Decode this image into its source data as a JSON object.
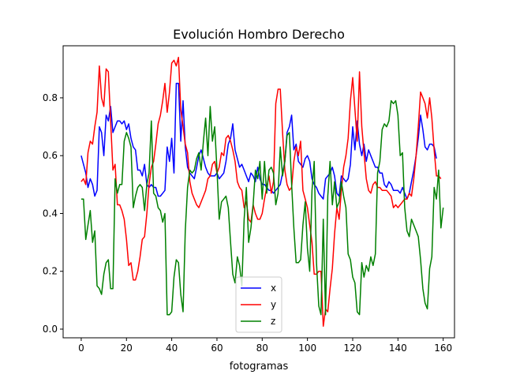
{
  "chart_data": {
    "type": "line",
    "title": "Evolución Hombro Derecho",
    "xlabel": "fotogramas",
    "ylabel": "",
    "xlim": [
      -8,
      165
    ],
    "ylim": [
      -0.03,
      0.98
    ],
    "xticks": [
      0,
      20,
      40,
      60,
      80,
      100,
      120,
      140,
      160
    ],
    "yticks": [
      0.0,
      0.2,
      0.4,
      0.6,
      0.8
    ],
    "xtick_labels": [
      "0",
      "20",
      "40",
      "60",
      "80",
      "100",
      "120",
      "140",
      "160"
    ],
    "ytick_labels": [
      "0.0",
      "0.2",
      "0.4",
      "0.6",
      "0.8"
    ],
    "grid": false,
    "legend": "bottom-center",
    "series": [
      {
        "name": "x",
        "color": "#0000ff",
        "values": [
          0.6,
          0.57,
          0.54,
          0.49,
          0.52,
          0.5,
          0.46,
          0.48,
          0.7,
          0.68,
          0.6,
          0.74,
          0.72,
          0.77,
          0.68,
          0.7,
          0.72,
          0.72,
          0.71,
          0.72,
          0.69,
          0.71,
          0.66,
          0.63,
          0.62,
          0.55,
          0.55,
          0.53,
          0.57,
          0.5,
          0.49,
          0.5,
          0.49,
          0.49,
          0.46,
          0.46,
          0.47,
          0.48,
          0.63,
          0.58,
          0.66,
          0.54,
          0.85,
          0.85,
          0.65,
          0.79,
          0.63,
          0.56,
          0.54,
          0.53,
          0.52,
          0.56,
          0.6,
          0.62,
          0.59,
          0.56,
          0.54,
          0.53,
          0.53,
          0.53,
          0.54,
          0.52,
          0.53,
          0.54,
          0.58,
          0.64,
          0.66,
          0.71,
          0.62,
          0.59,
          0.56,
          0.57,
          0.55,
          0.53,
          0.51,
          0.54,
          0.53,
          0.51,
          0.56,
          0.52,
          0.5,
          0.5,
          0.49,
          0.48,
          0.48,
          0.47,
          0.48,
          0.49,
          0.5,
          0.54,
          0.58,
          0.68,
          0.7,
          0.74,
          0.62,
          0.64,
          0.58,
          0.57,
          0.56,
          0.59,
          0.6,
          0.58,
          0.52,
          0.5,
          0.49,
          0.47,
          0.46,
          0.45,
          0.52,
          0.53,
          0.54,
          0.56,
          0.53,
          0.47,
          0.46,
          0.53,
          0.52,
          0.51,
          0.52,
          0.57,
          0.7,
          0.62,
          0.72,
          0.64,
          0.6,
          0.64,
          0.58,
          0.62,
          0.6,
          0.58,
          0.56,
          0.56,
          0.54,
          0.54,
          0.5,
          0.49,
          0.51,
          0.5,
          0.48,
          0.48,
          0.48,
          0.47,
          0.49,
          0.47,
          0.45,
          0.47,
          0.51,
          0.55,
          0.6,
          0.66,
          0.74,
          0.69,
          0.63,
          0.62,
          0.64,
          0.64,
          0.63,
          0.59
        ]
      },
      {
        "name": "y",
        "color": "#ff0000",
        "values": [
          0.51,
          0.52,
          0.5,
          0.61,
          0.65,
          0.64,
          0.7,
          0.75,
          0.91,
          0.8,
          0.77,
          0.9,
          0.89,
          0.72,
          0.55,
          0.57,
          0.43,
          0.43,
          0.41,
          0.38,
          0.31,
          0.22,
          0.23,
          0.17,
          0.17,
          0.2,
          0.25,
          0.31,
          0.32,
          0.4,
          0.5,
          0.56,
          0.58,
          0.64,
          0.71,
          0.74,
          0.79,
          0.85,
          0.75,
          0.82,
          0.92,
          0.93,
          0.91,
          0.94,
          0.76,
          0.7,
          0.64,
          0.61,
          0.51,
          0.47,
          0.45,
          0.43,
          0.42,
          0.44,
          0.46,
          0.48,
          0.52,
          0.53,
          0.57,
          0.58,
          0.54,
          0.56,
          0.61,
          0.6,
          0.66,
          0.67,
          0.65,
          0.62,
          0.58,
          0.51,
          0.49,
          0.48,
          0.42,
          0.44,
          0.38,
          0.37,
          0.43,
          0.4,
          0.38,
          0.38,
          0.4,
          0.45,
          0.49,
          0.53,
          0.47,
          0.51,
          0.78,
          0.83,
          0.83,
          0.68,
          0.55,
          0.5,
          0.48,
          0.49,
          0.58,
          0.63,
          0.6,
          0.65,
          0.48,
          0.45,
          0.42,
          0.36,
          0.3,
          0.19,
          0.19,
          0.2,
          0.2,
          0.01,
          0.07,
          0.06,
          0.14,
          0.21,
          0.33,
          0.42,
          0.38,
          0.48,
          0.56,
          0.6,
          0.66,
          0.79,
          0.87,
          0.76,
          0.65,
          0.89,
          0.7,
          0.61,
          0.52,
          0.48,
          0.47,
          0.5,
          0.51,
          0.49,
          0.49,
          0.48,
          0.48,
          0.48,
          0.47,
          0.46,
          0.42,
          0.43,
          0.42,
          0.43,
          0.44,
          0.45,
          0.45,
          0.47,
          0.46,
          0.52,
          0.6,
          0.7,
          0.82,
          0.8,
          0.78,
          0.73,
          0.8,
          0.73,
          0.62,
          0.53,
          0.53,
          0.52
        ]
      },
      {
        "name": "z",
        "color": "#008000",
        "values": [
          0.45,
          0.45,
          0.31,
          0.36,
          0.41,
          0.3,
          0.34,
          0.15,
          0.14,
          0.12,
          0.19,
          0.23,
          0.24,
          0.14,
          0.14,
          0.52,
          0.47,
          0.5,
          0.5,
          0.65,
          0.68,
          0.66,
          0.63,
          0.42,
          0.46,
          0.49,
          0.5,
          0.49,
          0.41,
          0.5,
          0.54,
          0.72,
          0.47,
          0.46,
          0.42,
          0.41,
          0.37,
          0.4,
          0.05,
          0.05,
          0.06,
          0.18,
          0.24,
          0.23,
          0.12,
          0.06,
          0.34,
          0.49,
          0.55,
          0.54,
          0.55,
          0.59,
          0.61,
          0.55,
          0.65,
          0.73,
          0.6,
          0.77,
          0.65,
          0.7,
          0.55,
          0.38,
          0.44,
          0.45,
          0.46,
          0.42,
          0.3,
          0.19,
          0.16,
          0.25,
          0.22,
          0.15,
          0.38,
          0.49,
          0.3,
          0.35,
          0.43,
          0.55,
          0.52,
          0.58,
          0.45,
          0.58,
          0.47,
          0.55,
          0.56,
          0.54,
          0.43,
          0.47,
          0.63,
          0.53,
          0.58,
          0.67,
          0.68,
          0.5,
          0.35,
          0.23,
          0.23,
          0.24,
          0.36,
          0.44,
          0.28,
          0.2,
          0.48,
          0.58,
          0.23,
          0.08,
          0.05,
          0.38,
          0.05,
          0.46,
          0.58,
          0.43,
          0.51,
          0.42,
          0.44,
          0.51,
          0.46,
          0.42,
          0.26,
          0.24,
          0.18,
          0.16,
          0.06,
          0.05,
          0.23,
          0.18,
          0.22,
          0.2,
          0.25,
          0.22,
          0.26,
          0.54,
          0.58,
          0.69,
          0.71,
          0.7,
          0.72,
          0.79,
          0.78,
          0.79,
          0.74,
          0.6,
          0.61,
          0.42,
          0.34,
          0.32,
          0.38,
          0.36,
          0.34,
          0.32,
          0.24,
          0.14,
          0.09,
          0.07,
          0.21,
          0.25,
          0.49,
          0.45,
          0.55,
          0.35,
          0.42
        ]
      }
    ]
  }
}
